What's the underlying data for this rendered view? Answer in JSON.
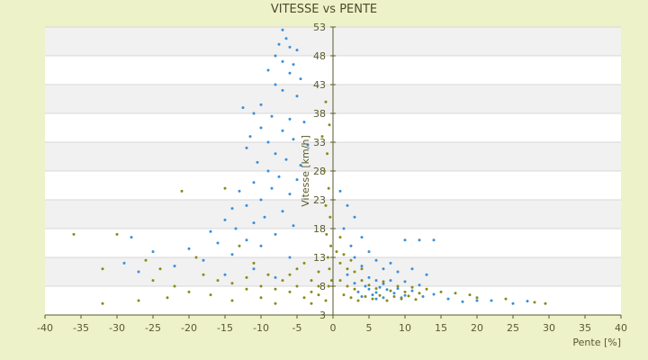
{
  "chart_data": {
    "type": "scatter",
    "title": "VITESSE vs PENTE",
    "xlabel": "Pente [%]",
    "ylabel": "Vitesse [km/h]",
    "xlim": [
      -40,
      40
    ],
    "ylim": [
      3,
      53
    ],
    "x_ticks": [
      -40,
      -35,
      -30,
      -25,
      -20,
      -15,
      -10,
      -5,
      0,
      5,
      10,
      15,
      20,
      25,
      30,
      35,
      40
    ],
    "y_ticks": [
      3,
      8,
      13,
      18,
      23,
      28,
      33,
      38,
      43,
      48,
      53
    ],
    "grid": "horizontal bands",
    "legend": "none",
    "series": [
      {
        "color": "#3a8fd9",
        "marker": "dot",
        "points": [
          [
            -7,
            52.5
          ],
          [
            -6.5,
            51
          ],
          [
            -7.5,
            50
          ],
          [
            -6,
            49.5
          ],
          [
            -5,
            49
          ],
          [
            -8,
            48
          ],
          [
            -7,
            47
          ],
          [
            -5.5,
            46.5
          ],
          [
            -9,
            45.5
          ],
          [
            -6,
            45
          ],
          [
            -4.5,
            44
          ],
          [
            -8,
            43
          ],
          [
            -7,
            42
          ],
          [
            -5,
            41
          ],
          [
            -10,
            39.5
          ],
          [
            -12.5,
            39
          ],
          [
            -11,
            38
          ],
          [
            -8.5,
            37.5
          ],
          [
            -6,
            37
          ],
          [
            -4,
            36.5
          ],
          [
            -10,
            35.5
          ],
          [
            -7,
            35
          ],
          [
            -11.5,
            34
          ],
          [
            -5.5,
            33.5
          ],
          [
            -9,
            33
          ],
          [
            -3.5,
            32.5
          ],
          [
            -12,
            32
          ],
          [
            -8,
            31
          ],
          [
            -6.5,
            30
          ],
          [
            -10.5,
            29.5
          ],
          [
            -4.5,
            29
          ],
          [
            -9,
            28
          ],
          [
            -7.5,
            27
          ],
          [
            -5,
            26.5
          ],
          [
            -11,
            26
          ],
          [
            -8.5,
            25
          ],
          [
            -13,
            24.5
          ],
          [
            -6,
            24
          ],
          [
            -10,
            23
          ],
          [
            -12,
            22
          ],
          [
            -14,
            21.5
          ],
          [
            -7,
            21
          ],
          [
            -9.5,
            20
          ],
          [
            -15,
            19.5
          ],
          [
            -11,
            19
          ],
          [
            -5.5,
            18.5
          ],
          [
            -13.5,
            18
          ],
          [
            -17,
            17.5
          ],
          [
            -8,
            17
          ],
          [
            -28,
            16.5
          ],
          [
            -12,
            16
          ],
          [
            -16,
            15.5
          ],
          [
            -10,
            15
          ],
          [
            -20,
            14.5
          ],
          [
            -25,
            14
          ],
          [
            -14,
            13.5
          ],
          [
            -6,
            13
          ],
          [
            -18,
            12.5
          ],
          [
            -29,
            12
          ],
          [
            -22,
            11.5
          ],
          [
            -11,
            11
          ],
          [
            -27,
            10.5
          ],
          [
            -15,
            10
          ],
          [
            -8,
            9.5
          ],
          [
            1,
            24.5
          ],
          [
            2,
            22
          ],
          [
            3,
            20
          ],
          [
            1.5,
            18
          ],
          [
            4,
            16.5
          ],
          [
            10,
            16
          ],
          [
            12,
            16
          ],
          [
            14,
            16
          ],
          [
            2.5,
            15
          ],
          [
            5,
            14
          ],
          [
            3,
            13
          ],
          [
            6,
            12.5
          ],
          [
            8,
            12
          ],
          [
            4,
            11.5
          ],
          [
            7,
            11
          ],
          [
            11,
            11
          ],
          [
            9,
            10.5
          ],
          [
            13,
            10
          ],
          [
            2,
            10
          ],
          [
            5,
            9.5
          ],
          [
            6,
            9
          ],
          [
            8,
            9
          ],
          [
            10,
            8.8
          ],
          [
            3,
            8.5
          ],
          [
            7,
            8.4
          ],
          [
            12,
            8.2
          ],
          [
            4.5,
            8
          ],
          [
            6.5,
            7.8
          ],
          [
            9,
            7.6
          ],
          [
            5,
            7.5
          ],
          [
            7.5,
            7.4
          ],
          [
            11,
            7.2
          ],
          [
            3.5,
            7
          ],
          [
            6,
            6.9
          ],
          [
            8.5,
            6.8
          ],
          [
            14,
            6.6
          ],
          [
            5.5,
            6.5
          ],
          [
            10,
            6.4
          ],
          [
            4,
            6.2
          ],
          [
            7,
            6
          ],
          [
            16,
            5.8
          ],
          [
            20,
            5.5
          ],
          [
            18,
            5.3
          ],
          [
            22,
            5.5
          ],
          [
            25,
            5
          ],
          [
            27,
            5.4
          ],
          [
            6,
            5.8
          ],
          [
            9.5,
            6
          ],
          [
            12.5,
            6.2
          ]
        ]
      },
      {
        "color": "#8a8a1a",
        "marker": "dot",
        "points": [
          [
            -36,
            17
          ],
          [
            -30,
            17
          ],
          [
            -32,
            11
          ],
          [
            -26,
            12.5
          ],
          [
            -24,
            11
          ],
          [
            -21,
            24.5
          ],
          [
            -19,
            13
          ],
          [
            -15,
            25
          ],
          [
            -13,
            15
          ],
          [
            -11,
            12
          ],
          [
            -9,
            10
          ],
          [
            -7,
            9
          ],
          [
            -5,
            8
          ],
          [
            -3,
            7
          ],
          [
            -2,
            6.5
          ],
          [
            -1,
            40
          ],
          [
            -0.5,
            36
          ],
          [
            -1.5,
            34
          ],
          [
            -0.8,
            31
          ],
          [
            -1.2,
            28
          ],
          [
            -0.6,
            25
          ],
          [
            -1,
            22
          ],
          [
            -0.4,
            20
          ],
          [
            -0.9,
            17
          ],
          [
            -0.3,
            15
          ],
          [
            -0.7,
            13
          ],
          [
            -0.5,
            11
          ],
          [
            -0.2,
            9
          ],
          [
            -0.6,
            8
          ],
          [
            -32,
            5
          ],
          [
            -27,
            5.5
          ],
          [
            -23,
            6
          ],
          [
            -20,
            7
          ],
          [
            -17,
            6.5
          ],
          [
            -14,
            5.5
          ],
          [
            -12,
            7.5
          ],
          [
            -10,
            6
          ],
          [
            -8,
            5
          ],
          [
            -6,
            7
          ],
          [
            -4,
            6
          ],
          [
            -3,
            5
          ],
          [
            -2,
            8
          ],
          [
            -1,
            5.5
          ],
          [
            -25,
            9
          ],
          [
            -22,
            8
          ],
          [
            -18,
            10
          ],
          [
            -16,
            9
          ],
          [
            -14,
            8.5
          ],
          [
            -12,
            9.5
          ],
          [
            -10,
            8
          ],
          [
            -8,
            7.5
          ],
          [
            -6,
            10
          ],
          [
            -5,
            11
          ],
          [
            -4,
            12
          ],
          [
            -3,
            9
          ],
          [
            -2,
            10.5
          ],
          [
            1,
            9
          ],
          [
            2,
            8
          ],
          [
            3,
            7.5
          ],
          [
            4,
            9
          ],
          [
            5,
            8.2
          ],
          [
            6,
            7.6
          ],
          [
            7,
            8.8
          ],
          [
            8,
            7.2
          ],
          [
            9,
            8
          ],
          [
            10,
            7
          ],
          [
            11,
            7.8
          ],
          [
            12,
            6.8
          ],
          [
            13,
            7.5
          ],
          [
            15,
            7
          ],
          [
            17,
            6.8
          ],
          [
            19,
            6.5
          ],
          [
            20,
            6
          ],
          [
            24,
            5.8
          ],
          [
            28,
            5.2
          ],
          [
            29.5,
            5
          ],
          [
            1.5,
            6.5
          ],
          [
            2.5,
            6
          ],
          [
            3.5,
            5.5
          ],
          [
            4.5,
            6.2
          ],
          [
            5.5,
            5.8
          ],
          [
            6.5,
            6.4
          ],
          [
            7.5,
            5.5
          ],
          [
            8.5,
            6.2
          ],
          [
            9.5,
            5.8
          ],
          [
            10.5,
            6.3
          ],
          [
            11.5,
            5.7
          ],
          [
            1,
            12
          ],
          [
            2,
            11
          ],
          [
            3,
            10.5
          ],
          [
            0.5,
            14
          ],
          [
            1.5,
            13.5
          ],
          [
            2.5,
            12.5
          ],
          [
            4,
            11
          ],
          [
            1,
            16.5
          ]
        ]
      }
    ]
  }
}
